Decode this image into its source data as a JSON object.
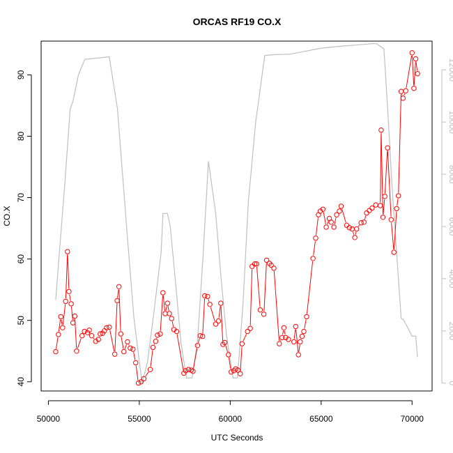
{
  "chart_data": {
    "type": "line",
    "title": "ORCAS RF19 CO.X",
    "xlabel": "UTC Seconds",
    "ylabel": "CO.X",
    "xlim": [
      49600,
      71100
    ],
    "ylim": [
      38.5,
      95.5
    ],
    "y2lim": [
      -300,
      13100
    ],
    "x_ticks": [
      50000,
      55000,
      60000,
      65000,
      70000
    ],
    "x_tick_labels": [
      "50000",
      "55000",
      "60000",
      "65000",
      "70000"
    ],
    "y_ticks": [
      40,
      50,
      60,
      70,
      80,
      90
    ],
    "y_tick_labels": [
      "40",
      "50",
      "60",
      "70",
      "80",
      "90"
    ],
    "y2_ticks": [
      0,
      2000,
      4000,
      6000,
      8000,
      10000,
      12000
    ],
    "y2_tick_labels": [
      "0",
      "2000",
      "4000",
      "6000",
      "8000",
      "10000",
      "12000"
    ],
    "grid": false,
    "legend": "none",
    "colors": {
      "co_series": "#ff0000",
      "altitude_series": "#bebebe",
      "axis": "#000000",
      "right_axis": "#bebebe"
    },
    "series": [
      {
        "axis": "left",
        "style": "line-with-open-circles",
        "points": [
          [
            50400,
            44.9
          ],
          [
            50550,
            47.7
          ],
          [
            50680,
            50.6
          ],
          [
            50780,
            48.8
          ],
          [
            50950,
            53.1
          ],
          [
            51050,
            61.2
          ],
          [
            51130,
            54.7
          ],
          [
            51250,
            52.7
          ],
          [
            51350,
            49.6
          ],
          [
            51450,
            50.7
          ],
          [
            51550,
            45.0
          ],
          [
            51850,
            47.5
          ],
          [
            51980,
            48.2
          ],
          [
            52150,
            48.0
          ],
          [
            52250,
            48.4
          ],
          [
            52380,
            47.5
          ],
          [
            52600,
            46.6
          ],
          [
            52750,
            46.9
          ],
          [
            52850,
            47.8
          ],
          [
            52980,
            47.9
          ],
          [
            53080,
            48.3
          ],
          [
            53200,
            48.8
          ],
          [
            53350,
            48.9
          ],
          [
            53650,
            44.5
          ],
          [
            53780,
            53.2
          ],
          [
            53880,
            55.5
          ],
          [
            53980,
            47.8
          ],
          [
            54150,
            44.9
          ],
          [
            54350,
            46.5
          ],
          [
            54500,
            45.5
          ],
          [
            54650,
            45.3
          ],
          [
            54800,
            43.1
          ],
          [
            54950,
            39.8
          ],
          [
            55100,
            40.0
          ],
          [
            55250,
            40.5
          ],
          [
            55600,
            42.0
          ],
          [
            55750,
            45.6
          ],
          [
            55900,
            46.6
          ],
          [
            56000,
            47.6
          ],
          [
            56150,
            47.8
          ],
          [
            56300,
            54.5
          ],
          [
            56420,
            51.1
          ],
          [
            56550,
            52.8
          ],
          [
            56650,
            51.1
          ],
          [
            56780,
            50.3
          ],
          [
            56900,
            48.5
          ],
          [
            57050,
            48.2
          ],
          [
            57450,
            41.4
          ],
          [
            57550,
            41.8
          ],
          [
            57700,
            42.0
          ],
          [
            57850,
            41.9
          ],
          [
            57950,
            41.7
          ],
          [
            58200,
            45.9
          ],
          [
            58350,
            47.5
          ],
          [
            58480,
            47.4
          ],
          [
            58600,
            54.0
          ],
          [
            58750,
            53.9
          ],
          [
            58880,
            52.6
          ],
          [
            59200,
            49.4
          ],
          [
            59350,
            49.9
          ],
          [
            59480,
            52.8
          ],
          [
            59600,
            46.1
          ],
          [
            59700,
            46.4
          ],
          [
            59900,
            44.4
          ],
          [
            60050,
            41.6
          ],
          [
            60200,
            41.8
          ],
          [
            60300,
            42.1
          ],
          [
            60420,
            41.9
          ],
          [
            60550,
            41.3
          ],
          [
            60650,
            46.2
          ],
          [
            60950,
            48.2
          ],
          [
            61100,
            48.7
          ],
          [
            61200,
            58.8
          ],
          [
            61350,
            59.2
          ],
          [
            61450,
            59.2
          ],
          [
            61650,
            51.7
          ],
          [
            61850,
            51.0
          ],
          [
            62000,
            59.8
          ],
          [
            62150,
            59.3
          ],
          [
            62250,
            59.0
          ],
          [
            62400,
            58.5
          ],
          [
            62700,
            46.2
          ],
          [
            62850,
            47.2
          ],
          [
            62950,
            48.8
          ],
          [
            63050,
            47.2
          ],
          [
            63200,
            46.9
          ],
          [
            63500,
            46.5
          ],
          [
            63600,
            49.0
          ],
          [
            63750,
            44.4
          ],
          [
            63850,
            46.5
          ],
          [
            63950,
            47.4
          ],
          [
            64050,
            48.2
          ],
          [
            64200,
            50.6
          ],
          [
            64550,
            60.1
          ],
          [
            64700,
            63.4
          ],
          [
            64850,
            67.2
          ],
          [
            64950,
            67.8
          ],
          [
            65100,
            68.1
          ],
          [
            65280,
            65.2
          ],
          [
            65450,
            66.6
          ],
          [
            65550,
            66.0
          ],
          [
            65700,
            65.2
          ],
          [
            65850,
            67.2
          ],
          [
            66000,
            67.8
          ],
          [
            66100,
            68.6
          ],
          [
            66400,
            65.5
          ],
          [
            66550,
            65.1
          ],
          [
            66700,
            64.9
          ],
          [
            66850,
            63.5
          ],
          [
            66950,
            64.9
          ],
          [
            67200,
            65.9
          ],
          [
            67350,
            66.0
          ],
          [
            67500,
            67.5
          ],
          [
            67650,
            67.9
          ],
          [
            67800,
            68.3
          ],
          [
            68000,
            68.8
          ],
          [
            68250,
            68.7
          ],
          [
            68300,
            81.0
          ],
          [
            68400,
            66.8
          ],
          [
            68500,
            70.2
          ],
          [
            68650,
            78.1
          ],
          [
            68850,
            66.4
          ],
          [
            69000,
            61.1
          ],
          [
            69150,
            68.2
          ],
          [
            69250,
            70.3
          ],
          [
            69400,
            87.3
          ],
          [
            69500,
            86.2
          ],
          [
            69650,
            87.4
          ],
          [
            70000,
            93.6
          ],
          [
            70100,
            87.8
          ],
          [
            70200,
            92.6
          ],
          [
            70300,
            90.2
          ]
        ]
      },
      {
        "axis": "right",
        "style": "line",
        "points": [
          [
            50400,
            3200
          ],
          [
            50900,
            7600
          ],
          [
            51200,
            10500
          ],
          [
            51350,
            10800
          ],
          [
            51650,
            11800
          ],
          [
            52000,
            12400
          ],
          [
            53350,
            12500
          ],
          [
            53800,
            10500
          ],
          [
            54300,
            6000
          ],
          [
            54700,
            2500
          ],
          [
            55150,
            0
          ],
          [
            55450,
            800
          ],
          [
            55800,
            2700
          ],
          [
            56200,
            5000
          ],
          [
            56300,
            6500
          ],
          [
            56550,
            6500
          ],
          [
            56700,
            6000
          ],
          [
            57000,
            3800
          ],
          [
            57300,
            1500
          ],
          [
            57600,
            200
          ],
          [
            57900,
            200
          ],
          [
            58200,
            1600
          ],
          [
            58500,
            4800
          ],
          [
            58800,
            8500
          ],
          [
            59000,
            7500
          ],
          [
            59200,
            6500
          ],
          [
            59500,
            4000
          ],
          [
            59800,
            1800
          ],
          [
            60150,
            200
          ],
          [
            60400,
            200
          ],
          [
            60700,
            3000
          ],
          [
            61000,
            7000
          ],
          [
            61400,
            10000
          ],
          [
            61900,
            12550
          ],
          [
            62400,
            12580
          ],
          [
            63300,
            12600
          ],
          [
            65000,
            12830
          ],
          [
            66000,
            12900
          ],
          [
            67800,
            13000
          ],
          [
            68050,
            13000
          ],
          [
            68450,
            12800
          ],
          [
            68700,
            10000
          ],
          [
            68900,
            7500
          ],
          [
            69200,
            4500
          ],
          [
            69400,
            2500
          ],
          [
            69550,
            2400
          ],
          [
            70000,
            1800
          ],
          [
            70200,
            1800
          ],
          [
            70300,
            1000
          ]
        ]
      }
    ]
  }
}
